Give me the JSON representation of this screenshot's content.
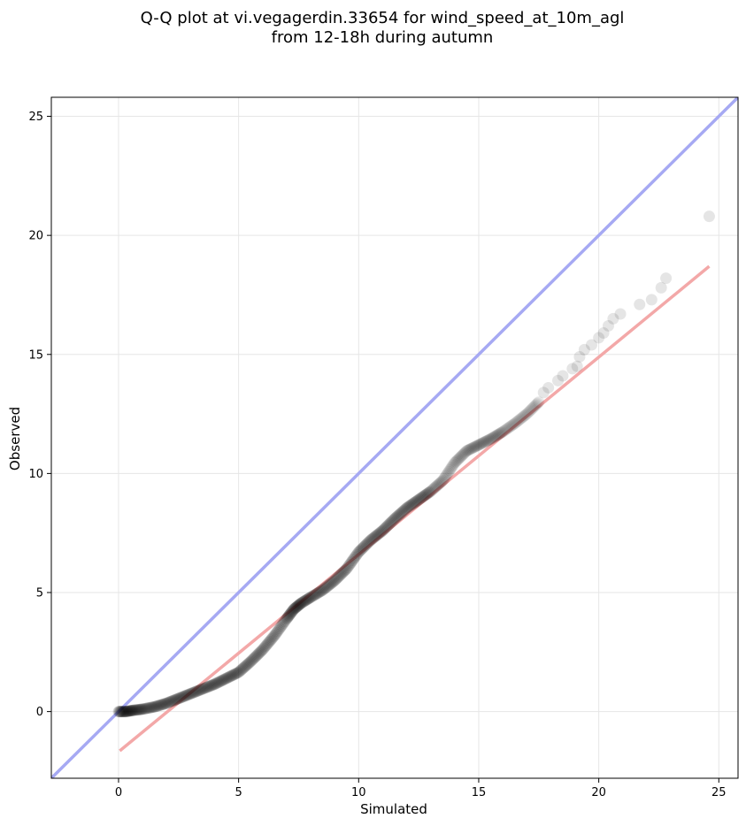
{
  "chart_data": {
    "type": "scatter",
    "title": "Q-Q plot at vi.vegagerdin.33654 for wind_speed_at_10m_agl",
    "subtitle": "from 12-18h during autumn",
    "xlabel": "Simulated",
    "ylabel": "Observed",
    "xlim": [
      -2.8,
      25.8
    ],
    "ylim": [
      -2.8,
      25.8
    ],
    "xticks": [
      0,
      5,
      10,
      15,
      20,
      25
    ],
    "yticks": [
      0,
      5,
      10,
      15,
      20,
      25
    ],
    "grid": true,
    "reference_line": {
      "type": "identity",
      "color": "#a6a9f3"
    },
    "fit_line": {
      "x": [
        0.05,
        24.6
      ],
      "y": [
        -1.65,
        18.7
      ],
      "color": "#f3a8a8"
    },
    "point_color": "#000000",
    "curve": {
      "x": [
        0.0,
        0.3,
        0.6,
        1.0,
        1.5,
        2.0,
        2.5,
        3.0,
        3.5,
        4.0,
        4.5,
        5.0,
        5.5,
        6.0,
        6.5,
        7.0,
        7.3,
        7.6,
        8.0,
        8.5,
        9.0,
        9.5,
        10.0,
        10.5,
        11.0,
        11.5,
        12.0,
        12.5,
        13.0,
        13.5,
        14.0,
        14.5,
        15.0,
        15.5,
        16.0,
        16.5,
        17.0,
        17.5
      ],
      "y": [
        0.0,
        0.0,
        0.05,
        0.1,
        0.2,
        0.35,
        0.55,
        0.75,
        0.95,
        1.15,
        1.4,
        1.65,
        2.1,
        2.6,
        3.2,
        3.9,
        4.3,
        4.55,
        4.8,
        5.1,
        5.5,
        6.0,
        6.7,
        7.2,
        7.6,
        8.1,
        8.55,
        8.9,
        9.25,
        9.7,
        10.45,
        10.95,
        11.2,
        11.45,
        11.75,
        12.1,
        12.5,
        13.0
      ]
    },
    "tail_points": {
      "x": [
        17.7,
        17.9,
        18.3,
        18.5,
        18.9,
        19.1,
        19.2,
        19.4,
        19.7,
        20.0,
        20.2,
        20.4,
        20.6,
        20.9,
        21.7,
        22.2,
        22.6,
        22.8,
        24.6
      ],
      "y": [
        13.4,
        13.6,
        13.9,
        14.1,
        14.4,
        14.5,
        14.9,
        15.2,
        15.4,
        15.7,
        15.9,
        16.2,
        16.5,
        16.7,
        17.1,
        17.3,
        17.8,
        18.2,
        20.8
      ]
    }
  }
}
